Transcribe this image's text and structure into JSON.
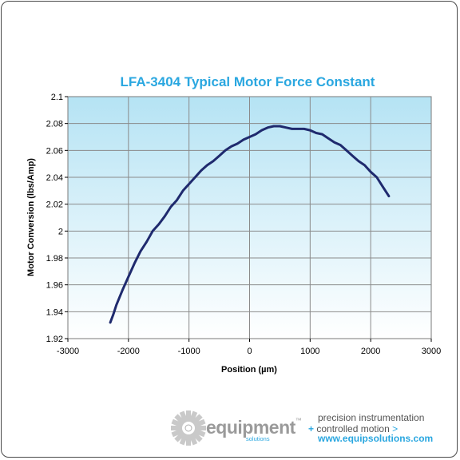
{
  "chart_data": {
    "type": "line",
    "title": "LFA-3404 Typical Motor Force Constant",
    "xlabel": "Position (µm)",
    "ylabel": "Motor Conversion (lbs/Amp)",
    "xlim": [
      -3000,
      3000
    ],
    "ylim": [
      1.92,
      2.1
    ],
    "xticks": [
      -3000,
      -2000,
      -1000,
      0,
      1000,
      2000,
      3000
    ],
    "yticks": [
      1.92,
      1.94,
      1.96,
      1.98,
      2,
      2.02,
      2.04,
      2.06,
      2.08,
      2.1
    ],
    "grid": true,
    "series": [
      {
        "color": "#1f2a6e",
        "x": [
          -2300,
          -2250,
          -2200,
          -2100,
          -2000,
          -1900,
          -1800,
          -1700,
          -1600,
          -1500,
          -1400,
          -1300,
          -1200,
          -1100,
          -1000,
          -900,
          -800,
          -700,
          -600,
          -500,
          -400,
          -300,
          -200,
          -100,
          0,
          100,
          200,
          300,
          400,
          500,
          600,
          700,
          800,
          900,
          1000,
          1100,
          1200,
          1300,
          1400,
          1500,
          1600,
          1700,
          1800,
          1900,
          2000,
          2100,
          2200,
          2300
        ],
        "y": [
          1.932,
          1.938,
          1.945,
          1.956,
          1.966,
          1.976,
          1.985,
          1.992,
          2.0,
          2.005,
          2.011,
          2.018,
          2.023,
          2.03,
          2.035,
          2.04,
          2.045,
          2.049,
          2.052,
          2.056,
          2.06,
          2.063,
          2.065,
          2.068,
          2.07,
          2.072,
          2.075,
          2.077,
          2.078,
          2.078,
          2.077,
          2.076,
          2.076,
          2.076,
          2.075,
          2.073,
          2.072,
          2.069,
          2.066,
          2.064,
          2.06,
          2.056,
          2.052,
          2.049,
          2.044,
          2.04,
          2.033,
          2.026
        ]
      }
    ]
  },
  "footer": {
    "logo_text": "equipment",
    "logo_tm": "™",
    "logo_sub": "solutions",
    "tag_line_1": "precision instrumentation",
    "tag_plus": "+",
    "tag_line_2": "controlled motion",
    "tag_arrow": ">",
    "website": "www.equipsolutions.com"
  },
  "colors": {
    "title": "#2aa7e0",
    "plot_top": "#b5e3f4",
    "plot_bottom": "#ffffff",
    "grid": "#8a8a8a",
    "line": "#1f2a6e",
    "brand_gray": "#9a9a9a",
    "brand_blue": "#2aa7e0"
  }
}
